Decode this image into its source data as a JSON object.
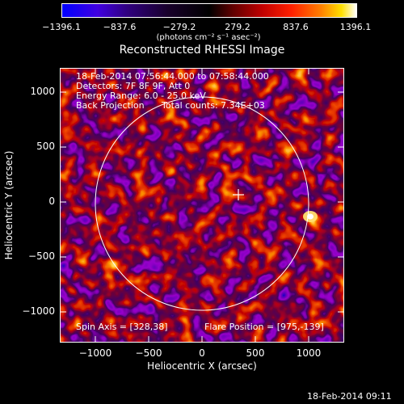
{
  "colorbar": {
    "ticks": [
      "−1396.1",
      "−837.6",
      "−279.2",
      "279.2",
      "837.6",
      "1396.1"
    ],
    "units": "(photons cm⁻² s⁻¹ asec⁻²)"
  },
  "plot": {
    "title": "Reconstructed RHESSI Image",
    "xlabel": "Heliocentric X (arcsec)",
    "ylabel": "Heliocentric Y (arcsec)",
    "xticks": [
      "−1000",
      "−500",
      "0",
      "500",
      "1000"
    ],
    "yticks": [
      "1000",
      "500",
      "0",
      "−500",
      "−1000"
    ],
    "info": {
      "time_range": "18-Feb-2014 07:56:44.000 to 07:58:44.000",
      "detectors": "Detectors: 7F 8F 9F, Att 0",
      "energy": "Energy Range: 6.0 - 25.0 keV",
      "method": "Back Projection",
      "total_counts": "Total counts: 7.34E+03"
    },
    "spin_axis": "Spin Axis = [328,38]",
    "flare_position": "Flare Position = [975,-139]"
  },
  "footer": {
    "timestamp": "18-Feb-2014 09:11"
  },
  "colors": {
    "background": "#000000",
    "foreground": "#ffffff",
    "map_low": "#0000ff",
    "map_high": "#ffffff"
  }
}
